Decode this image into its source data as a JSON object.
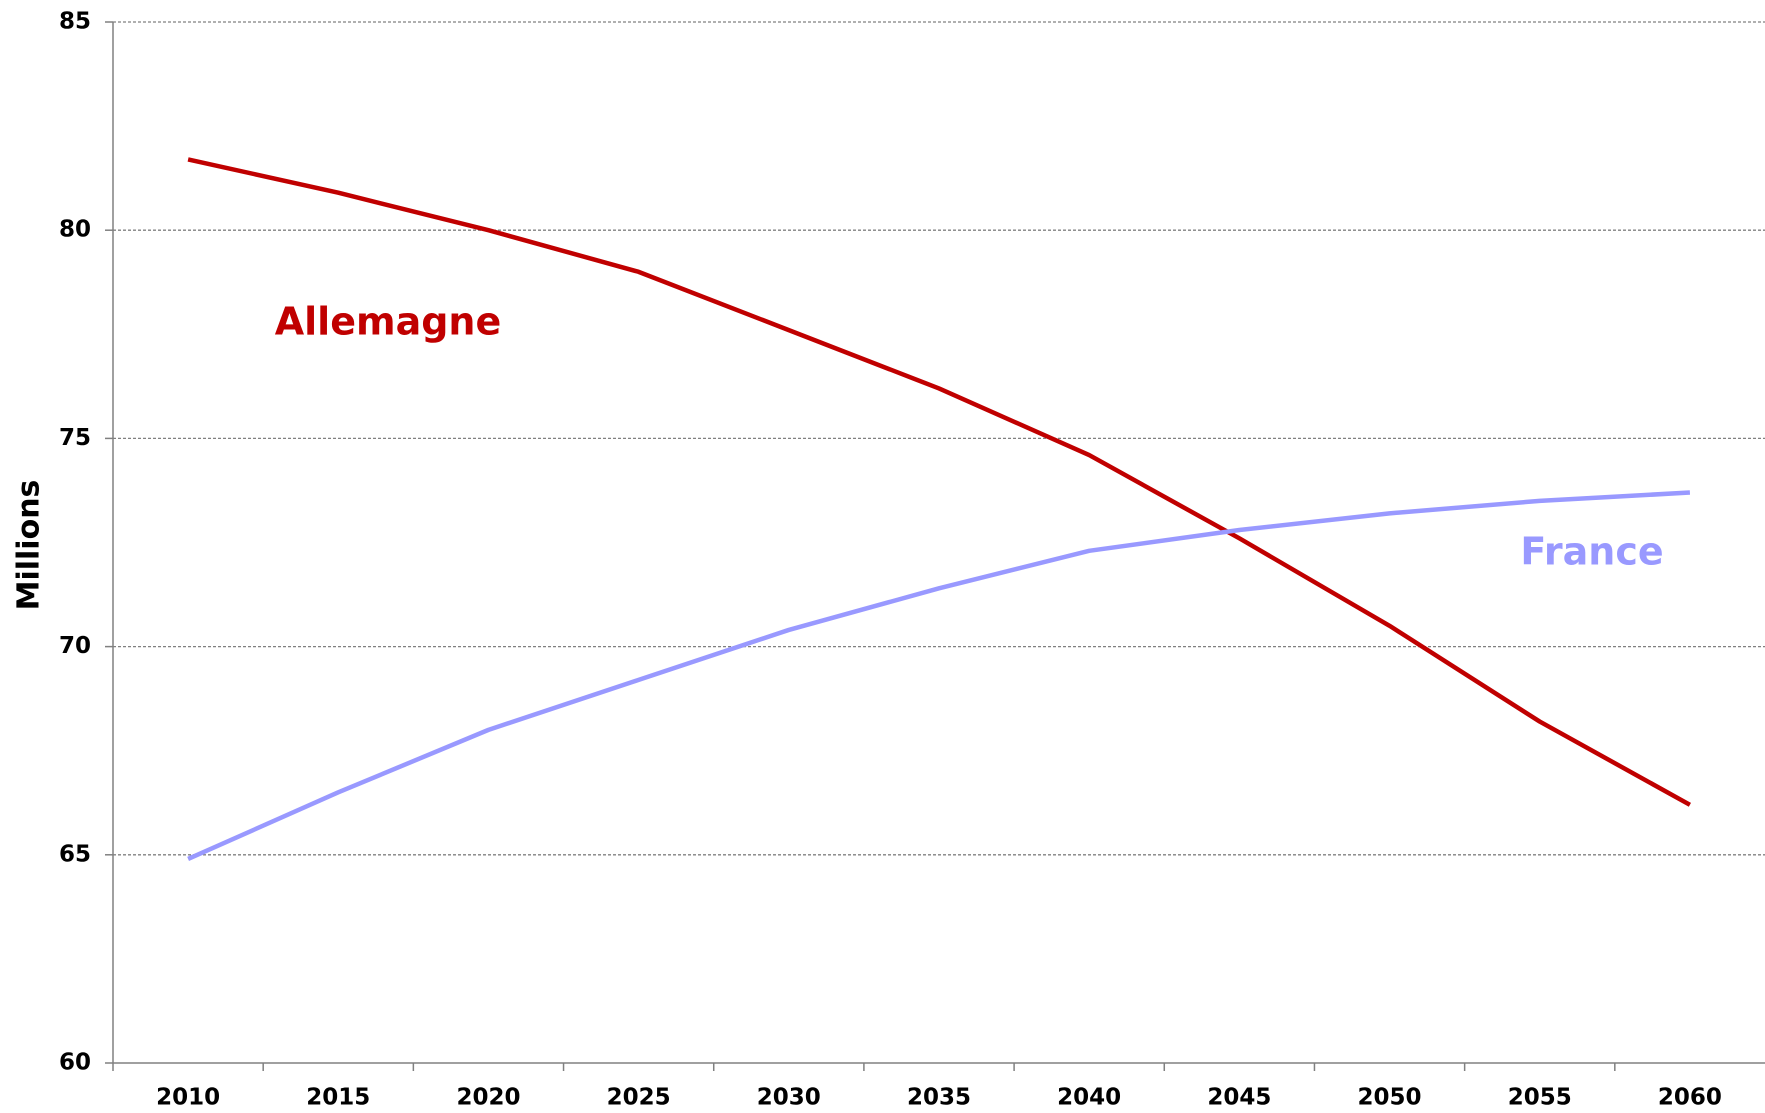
{
  "chart_data": {
    "type": "line",
    "y_label": "Millions",
    "categories": [
      "2010",
      "2015",
      "2020",
      "2025",
      "2030",
      "2035",
      "2040",
      "2045",
      "2050",
      "2055",
      "2060"
    ],
    "series": [
      {
        "name": "Allemagne",
        "color": "#c00000",
        "values": [
          81.7,
          80.9,
          80.0,
          79.0,
          77.6,
          76.2,
          74.6,
          72.6,
          70.5,
          68.2,
          66.2
        ]
      },
      {
        "name": "France",
        "color": "#9999ff",
        "values": [
          64.9,
          66.5,
          68.0,
          69.2,
          70.4,
          71.4,
          72.3,
          72.8,
          73.2,
          73.5,
          73.7
        ]
      }
    ],
    "ylim": [
      60,
      85
    ],
    "yticks": [
      60,
      65,
      70,
      75,
      80,
      85
    ],
    "grid": true
  }
}
